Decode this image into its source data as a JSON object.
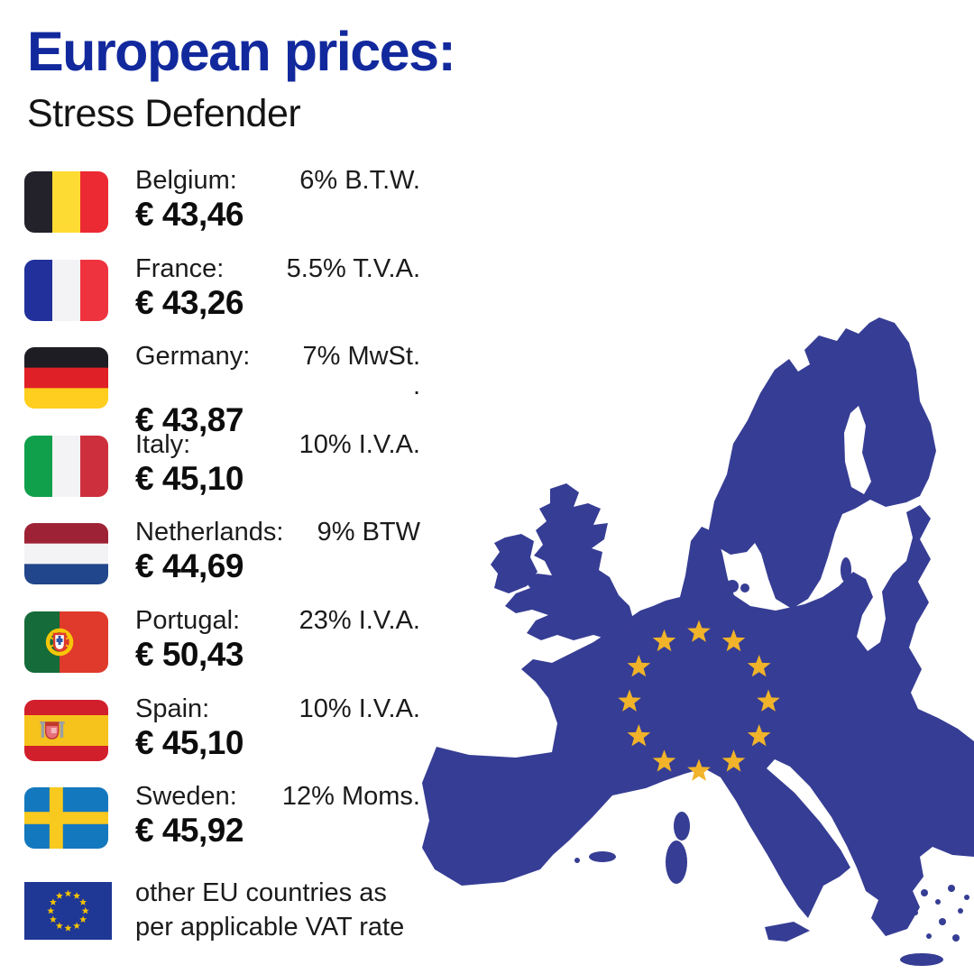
{
  "header": {
    "title": "European prices:",
    "subtitle": "Stress Defender",
    "title_color": "#12299D"
  },
  "rows": [
    {
      "country": "belgium",
      "label": "Belgium:",
      "price": "€ 43,46",
      "vat": "6% B.T.W.",
      "flag": {
        "type": "vertical",
        "stripes": [
          "#23212A",
          "#FEDB33",
          "#EC2A33"
        ]
      }
    },
    {
      "country": "france",
      "label": "France:",
      "price": "€ 43,26",
      "vat": "5.5% T.V.A.",
      "flag": {
        "type": "vertical",
        "stripes": [
          "#21309B",
          "#F3F2F4",
          "#EE333E"
        ]
      }
    },
    {
      "country": "germany",
      "label": "Germany:",
      "price": "€ 43,87",
      "vat": "7% MwSt.",
      "vat2": ".",
      "flag": {
        "type": "horizontal",
        "stripes": [
          "#1F1D24",
          "#DF2026",
          "#FFCE1E"
        ]
      }
    },
    {
      "country": "italy",
      "label": "Italy:",
      "price": "€ 45,10",
      "vat": "10% I.V.A.",
      "flag": {
        "type": "vertical",
        "stripes": [
          "#10A04C",
          "#F3F2F4",
          "#CE2F3C"
        ]
      }
    },
    {
      "country": "netherlands",
      "label": "Netherlands:",
      "price": "€ 44,69",
      "vat": "9% BTW",
      "flag": {
        "type": "horizontal",
        "stripes": [
          "#9E2235",
          "#F3F2F4",
          "#21468B"
        ]
      }
    },
    {
      "country": "portugal",
      "label": "Portugal:",
      "price": "€ 50,43",
      "vat": "23% I.V.A.",
      "flag": {
        "type": "vertical",
        "stripes": [
          "#156B39",
          "#DF3A2B"
        ],
        "widths": [
          0.42,
          0.58
        ],
        "emblem": "portugal"
      }
    },
    {
      "country": "spain",
      "label": "Spain:",
      "price": "€ 45,10",
      "vat": "10% I.V.A.",
      "flag": {
        "type": "horizontal",
        "stripes": [
          "#D21F2C",
          "#F6C21C",
          "#D21F2C"
        ],
        "widths": [
          0.25,
          0.5,
          0.25
        ],
        "emblem": "spain"
      }
    },
    {
      "country": "sweden",
      "label": "Sweden:",
      "price": "€ 45,92",
      "vat": "12% Moms.",
      "flag": {
        "type": "nordic",
        "field": "#1478BE",
        "cross": "#F8C91F"
      }
    }
  ],
  "footer": {
    "line1": "other EU countries as",
    "line2": "per applicable VAT rate",
    "flag": {
      "type": "eu",
      "field": "#1F3795",
      "star": "#F7C400"
    }
  },
  "map": {
    "land_color": "#363D94",
    "star_color": "#F0B32A",
    "star_count": 12
  }
}
